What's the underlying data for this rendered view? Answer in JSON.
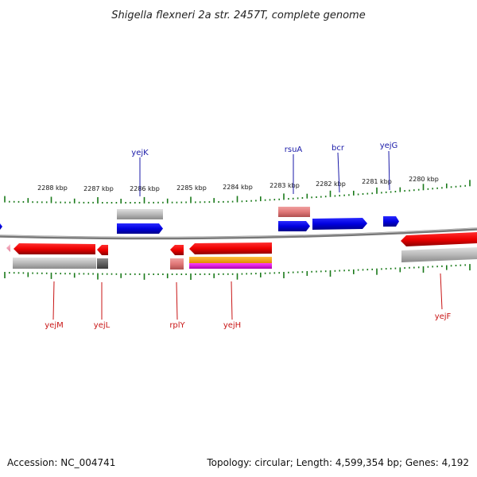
{
  "title": "Shigella flexneri 2a str. 2457T, complete genome",
  "footer": {
    "accession": "Accession: NC_004741",
    "summary": "Topology: circular; Length: 4,599,354 bp; Genes: 4,192"
  },
  "scale": {
    "unit_suffix": " kbp",
    "labels": [
      2288,
      2287,
      2286,
      2285,
      2284,
      2283,
      2282,
      2281,
      2280
    ]
  },
  "colors": {
    "forward_gene": "#0000ee",
    "reverse_gene": "#ee0000",
    "forward_label": "#1a1aa8",
    "reverse_label": "#c81414",
    "tick": "#1a7a1a",
    "backbone": "#777777"
  },
  "labels": {
    "top": [
      "yejK",
      "rsuA",
      "bcr",
      "yejG"
    ],
    "bottom": [
      "yejM",
      "yejL",
      "rplY",
      "yejH",
      "yejF"
    ]
  }
}
